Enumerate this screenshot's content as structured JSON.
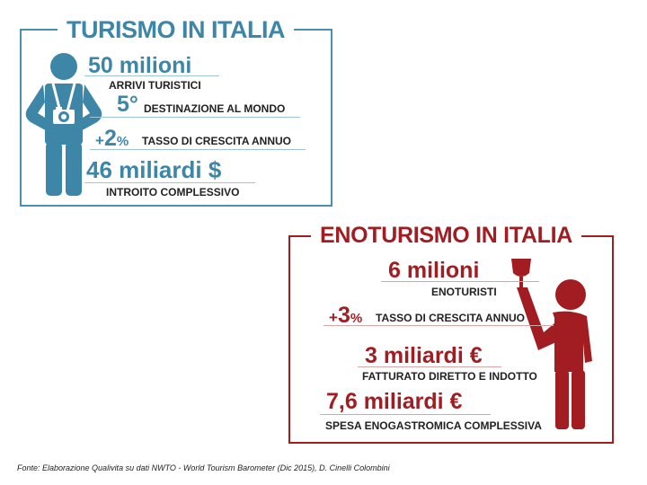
{
  "colors": {
    "blue": "#3d86a8",
    "red": "#a11d22"
  },
  "tourism": {
    "title": "TURISMO IN ITALIA",
    "icon": "tourist-with-camera-icon",
    "arrivals": {
      "value": "50 milioni",
      "label": "ARRIVI TURISTICI"
    },
    "rank": {
      "value": "5°",
      "label": "DESTINAZIONE AL MONDO"
    },
    "growth": {
      "prefix": "+",
      "value": "2",
      "suffix": "%",
      "label": "TASSO DI CRESCITA ANNUO"
    },
    "revenue": {
      "value": "46 miliardi $",
      "label": "INTROITO COMPLESSIVO"
    }
  },
  "wine_tourism": {
    "title": "ENOTURISMO IN ITALIA",
    "icon": "person-raising-wine-glass-icon",
    "visitors": {
      "value": "6 milioni",
      "label": "ENOTURISTI"
    },
    "growth": {
      "prefix": "+",
      "value": "3",
      "suffix": "%",
      "label": "TASSO DI CRESCITA ANNUO"
    },
    "turnover": {
      "value": "3 miliardi €",
      "label": "FATTURATO DIRETTO E INDOTTO"
    },
    "spending": {
      "value": "7,6 miliardi €",
      "label": "SPESA ENOGASTROMICA COMPLESSIVA"
    }
  },
  "source": "Fonte: Elaborazione Qualivita su dati NWTO - World Tourism Barometer  (Dic 2015), D. Cinelli Colombini"
}
